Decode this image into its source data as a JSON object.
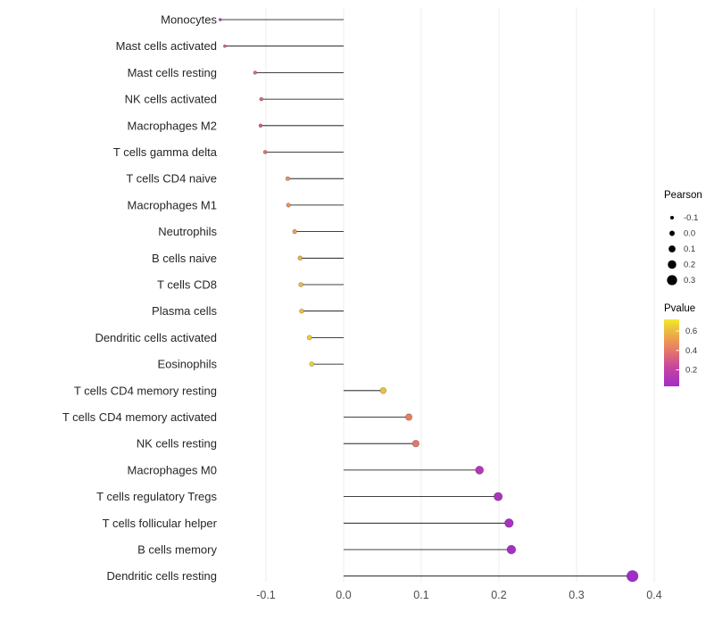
{
  "figure": {
    "background": "#ffffff",
    "title": ""
  },
  "chart_data": {
    "type": "bar",
    "variant": "horizontal-lollipop",
    "orientation": "horizontal",
    "title": "",
    "xlabel": "",
    "ylabel": "",
    "xlim": [
      -0.19,
      0.43
    ],
    "x_ticks": [
      -0.1,
      0.0,
      0.1,
      0.2,
      0.3,
      0.4
    ],
    "x_tick_labels": [
      "-0.1",
      "0.0",
      "0.1",
      "0.2",
      "0.3",
      "0.4"
    ],
    "baseline": 0.0,
    "grid": "faint vertical gridlines at x ticks",
    "points": [
      {
        "label": "Monocytes",
        "pearson": -0.159,
        "pvalue": 0.15
      },
      {
        "label": "Mast cells activated",
        "pearson": -0.153,
        "pvalue": 0.33
      },
      {
        "label": "Mast cells resting",
        "pearson": -0.114,
        "pvalue": 0.35
      },
      {
        "label": "NK cells activated",
        "pearson": -0.106,
        "pvalue": 0.35
      },
      {
        "label": "Macrophages M2",
        "pearson": -0.107,
        "pvalue": 0.32
      },
      {
        "label": "T cells gamma delta",
        "pearson": -0.101,
        "pvalue": 0.38
      },
      {
        "label": "T cells CD4 naive",
        "pearson": -0.072,
        "pvalue": 0.48
      },
      {
        "label": "Macrophages M1",
        "pearson": -0.071,
        "pvalue": 0.48
      },
      {
        "label": "Neutrophils",
        "pearson": -0.063,
        "pvalue": 0.52
      },
      {
        "label": "B cells naive",
        "pearson": -0.056,
        "pvalue": 0.57
      },
      {
        "label": "T cells CD8",
        "pearson": -0.055,
        "pvalue": 0.6
      },
      {
        "label": "Plasma cells",
        "pearson": -0.054,
        "pvalue": 0.6
      },
      {
        "label": "Dendritic cells activated",
        "pearson": -0.044,
        "pvalue": 0.65
      },
      {
        "label": "Eosinophils",
        "pearson": -0.041,
        "pvalue": 0.66
      },
      {
        "label": "T cells CD4 memory resting",
        "pearson": 0.051,
        "pvalue": 0.62
      },
      {
        "label": "T cells CD4 memory activated",
        "pearson": 0.084,
        "pvalue": 0.42
      },
      {
        "label": "NK cells resting",
        "pearson": 0.093,
        "pvalue": 0.4
      },
      {
        "label": "Macrophages M0",
        "pearson": 0.175,
        "pvalue": 0.12
      },
      {
        "label": "T cells regulatory  Tregs",
        "pearson": 0.199,
        "pvalue": 0.09
      },
      {
        "label": "T cells follicular helper",
        "pearson": 0.213,
        "pvalue": 0.07
      },
      {
        "label": "B cells memory",
        "pearson": 0.216,
        "pvalue": 0.06
      },
      {
        "label": "Dendritic cells resting",
        "pearson": 0.372,
        "pvalue": 0.01
      }
    ],
    "legend": {
      "position": "right",
      "size_legend": {
        "title": "Pearson",
        "entries": [
          -0.1,
          0.0,
          0.1,
          0.2,
          0.3
        ],
        "entry_labels": [
          "-0.1",
          "0.0",
          "0.1",
          "0.2",
          "0.3"
        ]
      },
      "color_legend": {
        "title": "Pvalue",
        "ticks": [
          0.6,
          0.4,
          0.2
        ],
        "tick_labels": [
          "0.6",
          "0.4",
          "0.2"
        ],
        "domain": [
          0.03,
          0.72
        ],
        "gradient_top": "yellow (high p-value)",
        "gradient_bottom": "purple (low p-value)"
      }
    },
    "colors": {
      "stem": "#000000",
      "point_outline": "rgba(0,0,0,0.35)",
      "tick_text": "#4d4d4d",
      "category_text": "#262626",
      "gridline": "#ececec",
      "gradient_stops": [
        {
          "t": 0.0,
          "hex": "#A12CCB"
        },
        {
          "t": 0.3,
          "hex": "#C8489B"
        },
        {
          "t": 0.5,
          "hex": "#E2706E"
        },
        {
          "t": 0.7,
          "hex": "#EE9C4F"
        },
        {
          "t": 0.88,
          "hex": "#E9C93A"
        },
        {
          "t": 1.0,
          "hex": "#F5E92A"
        }
      ]
    }
  }
}
